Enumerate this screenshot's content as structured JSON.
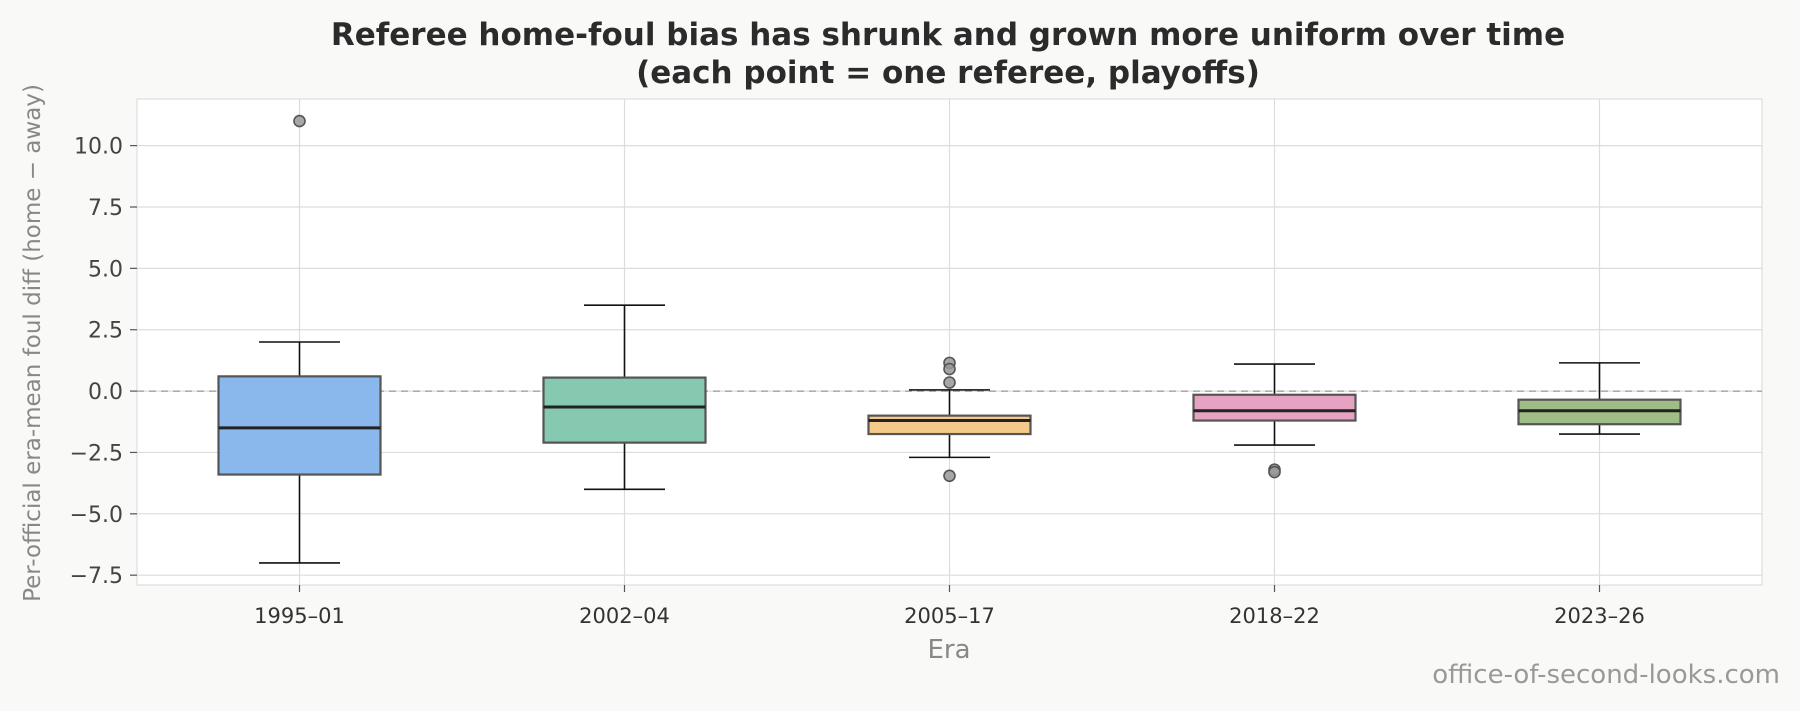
{
  "chart_data": {
    "type": "box",
    "title": [
      "Referee home-foul bias has shrunk and grown more uniform over time",
      "(each point = one referee, playoffs)"
    ],
    "xlabel": "Era",
    "ylabel": "Per-official era-mean foul diff (home − away)",
    "ylim": [
      -7.9,
      11.9
    ],
    "yticks": [
      -7.5,
      -5.0,
      -2.5,
      0.0,
      2.5,
      5.0,
      7.5,
      10.0
    ],
    "ytick_labels": [
      "−7.5",
      "−5.0",
      "−2.5",
      "0.0",
      "2.5",
      "5.0",
      "7.5",
      "10.0"
    ],
    "grid": true,
    "reference_line": 0,
    "categories": [
      "1995–01",
      "2002–04",
      "2005–17",
      "2018–22",
      "2023–26"
    ],
    "boxes": [
      {
        "category": "1995–01",
        "color": "#8bb8ec",
        "whisker_low": -7.0,
        "q1": -3.4,
        "median": -1.5,
        "q3": 0.6,
        "whisker_high": 2.0,
        "outliers": [
          11.0
        ]
      },
      {
        "category": "2002–04",
        "color": "#84c9b0",
        "whisker_low": -4.0,
        "q1": -2.1,
        "median": -0.65,
        "q3": 0.55,
        "whisker_high": 3.5,
        "outliers": []
      },
      {
        "category": "2005–17",
        "color": "#f5c98a",
        "whisker_low": -2.7,
        "q1": -1.75,
        "median": -1.2,
        "q3": -1.0,
        "whisker_high": 0.05,
        "outliers": [
          1.15,
          0.9,
          0.35,
          -3.45
        ]
      },
      {
        "category": "2018–22",
        "color": "#e6a2c2",
        "whisker_low": -2.2,
        "q1": -1.2,
        "median": -0.8,
        "q3": -0.15,
        "whisker_high": 1.1,
        "outliers": [
          -3.2,
          -3.3
        ]
      },
      {
        "category": "2023–26",
        "color": "#9fbd86",
        "whisker_low": -1.75,
        "q1": -1.35,
        "median": -0.8,
        "q3": -0.35,
        "whisker_high": 1.15,
        "outliers": []
      }
    ]
  },
  "watermark": "office-of-second-looks.com"
}
